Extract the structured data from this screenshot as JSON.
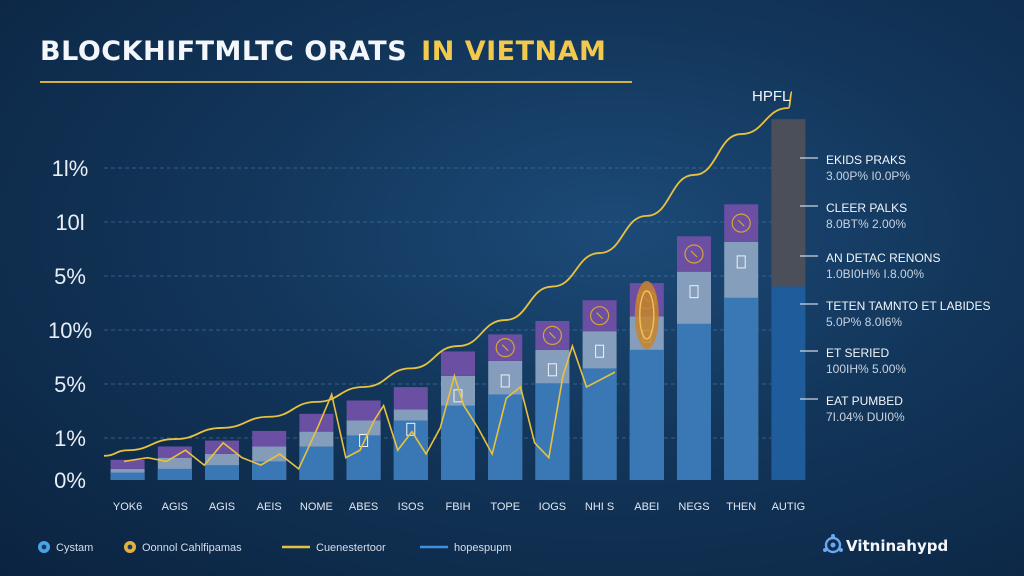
{
  "colors": {
    "bar_light": "#8ea6c3",
    "bar_dark": "#3a78b5",
    "bar_cap": "#6a4fa3",
    "last_bar_top": "#4a4f5a",
    "last_bar_bottom": "#1e5c9c",
    "curve": "#e8c13f",
    "gridline": "#3d6a95",
    "icon": "#d9a330"
  },
  "chart_data": {
    "type": "bar",
    "title": "BLOCKHIFTMLTC ORATS",
    "title_accent": "IN VIETNAM",
    "peak_label": "HPFL",
    "yticks": [
      "1l%",
      "10l",
      "5%",
      "10%",
      "5%",
      "1%",
      "0%"
    ],
    "ylim": [
      0,
      100
    ],
    "categories": [
      "YOK6",
      "AGIS",
      "AGIS",
      "AEIS",
      "NOME",
      "ABES",
      "ISOS",
      "FBIH",
      "TOPE",
      "IOGS",
      "NHI S",
      "ABEI",
      "NEGS",
      "THEN",
      "AUTIG"
    ],
    "series": [
      {
        "name": "Cystam",
        "values": [
          2,
          3,
          4,
          5,
          9,
          12,
          16,
          20,
          23,
          26,
          30,
          35,
          42,
          49,
          52
        ]
      },
      {
        "name": "Oonnol Cahlfipamas",
        "values": [
          3,
          6,
          7,
          9,
          13,
          16,
          19,
          28,
          32,
          35,
          40,
          44,
          56,
          64,
          82
        ]
      },
      {
        "name": "Cuenestertoor",
        "values": [
          8,
          11,
          14,
          17,
          21,
          25,
          30,
          36,
          43,
          52,
          61,
          71,
          82,
          93,
          100
        ]
      },
      {
        "name": "hopespupm",
        "values": [
          1,
          2,
          3,
          4,
          6,
          8,
          11,
          14,
          17,
          21,
          25,
          30,
          36,
          43,
          48
        ]
      }
    ],
    "squiggle": [
      [
        0.0,
        5
      ],
      [
        0.5,
        6
      ],
      [
        0.9,
        5
      ],
      [
        1.3,
        8
      ],
      [
        1.7,
        4
      ],
      [
        2.1,
        10
      ],
      [
        2.5,
        6
      ],
      [
        2.9,
        4
      ],
      [
        3.3,
        7
      ],
      [
        3.7,
        3
      ],
      [
        4.1,
        14
      ],
      [
        4.4,
        23
      ],
      [
        4.7,
        6
      ],
      [
        5.0,
        8
      ],
      [
        5.3,
        16
      ],
      [
        5.5,
        20
      ],
      [
        5.8,
        8
      ],
      [
        6.1,
        13
      ],
      [
        6.4,
        7
      ],
      [
        6.7,
        14
      ],
      [
        7.0,
        28
      ],
      [
        7.2,
        20
      ],
      [
        7.5,
        14
      ],
      [
        7.8,
        7
      ],
      [
        8.1,
        22
      ],
      [
        8.4,
        25
      ],
      [
        8.7,
        10
      ],
      [
        9.0,
        6
      ],
      [
        9.3,
        28
      ],
      [
        9.5,
        36
      ],
      [
        9.8,
        25
      ],
      [
        10.1,
        27
      ],
      [
        10.4,
        29
      ]
    ],
    "side_panel": [
      {
        "label": "EKIDS PRAKS",
        "value": "3.00P% I0.0P%"
      },
      {
        "label": "CLEER PALKS",
        "value": "8.0BT% 2.00%"
      },
      {
        "label": "AN DETAC RENONS",
        "value": "1.0BI0H% I.8.00%"
      },
      {
        "label": "TETEN TAMNTO ET LABIDES",
        "value": "5.0P% 8.0I6%"
      },
      {
        "label": "ET SERIED",
        "value": "100IH% 5.00%"
      },
      {
        "label": "EAT PUMBED",
        "value": "7I.04% DUI0%"
      }
    ],
    "legend": [
      {
        "label": "Cystam",
        "marker": "circle"
      },
      {
        "label": "Oonnol Cahlfipamas",
        "marker": "circle"
      },
      {
        "label": "Cuenestertoor",
        "marker": "line"
      },
      {
        "label": "hopespupm",
        "marker": "line"
      }
    ],
    "legend_position": "bottom-left"
  },
  "brand": {
    "text": "Vitninahypd",
    "icon": "gear-network-icon"
  }
}
